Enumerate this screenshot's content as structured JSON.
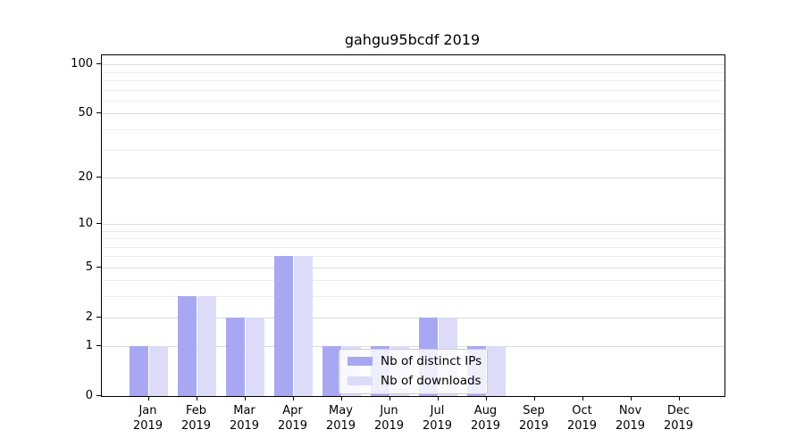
{
  "chart_data": {
    "type": "bar",
    "title": "gahgu95bcdf 2019",
    "categories": [
      "Jan",
      "Feb",
      "Mar",
      "Apr",
      "May",
      "Jun",
      "Jul",
      "Aug",
      "Sep",
      "Oct",
      "Nov",
      "Dec"
    ],
    "xtick_year_line": "2019",
    "series": [
      {
        "name": "Nb of distinct IPs",
        "color": "#a8a8f2",
        "values": [
          1,
          3,
          2,
          6,
          1,
          1,
          2,
          1,
          0,
          0,
          0,
          0
        ]
      },
      {
        "name": "Nb of downloads",
        "color": "#dcdcf8",
        "values": [
          1,
          3,
          2,
          6,
          1,
          1,
          2,
          1,
          0,
          0,
          0,
          0
        ]
      }
    ],
    "yscale": "log10(1+x)",
    "ytick_labels": [
      "0",
      "1",
      "2",
      "5",
      "10",
      "20",
      "50",
      "100"
    ],
    "yticks": [
      0,
      1,
      2,
      5,
      10,
      20,
      50,
      100
    ],
    "minor_gridline_values": [
      1,
      2,
      3,
      4,
      5,
      6,
      7,
      8,
      9,
      10,
      20,
      30,
      40,
      50,
      60,
      70,
      80,
      90,
      100
    ],
    "ylim": [
      0,
      114
    ],
    "grid": true,
    "legend": {
      "position": "lower-center",
      "items": [
        {
          "label": "Nb of distinct IPs"
        },
        {
          "label": "Nb of downloads"
        }
      ]
    }
  }
}
